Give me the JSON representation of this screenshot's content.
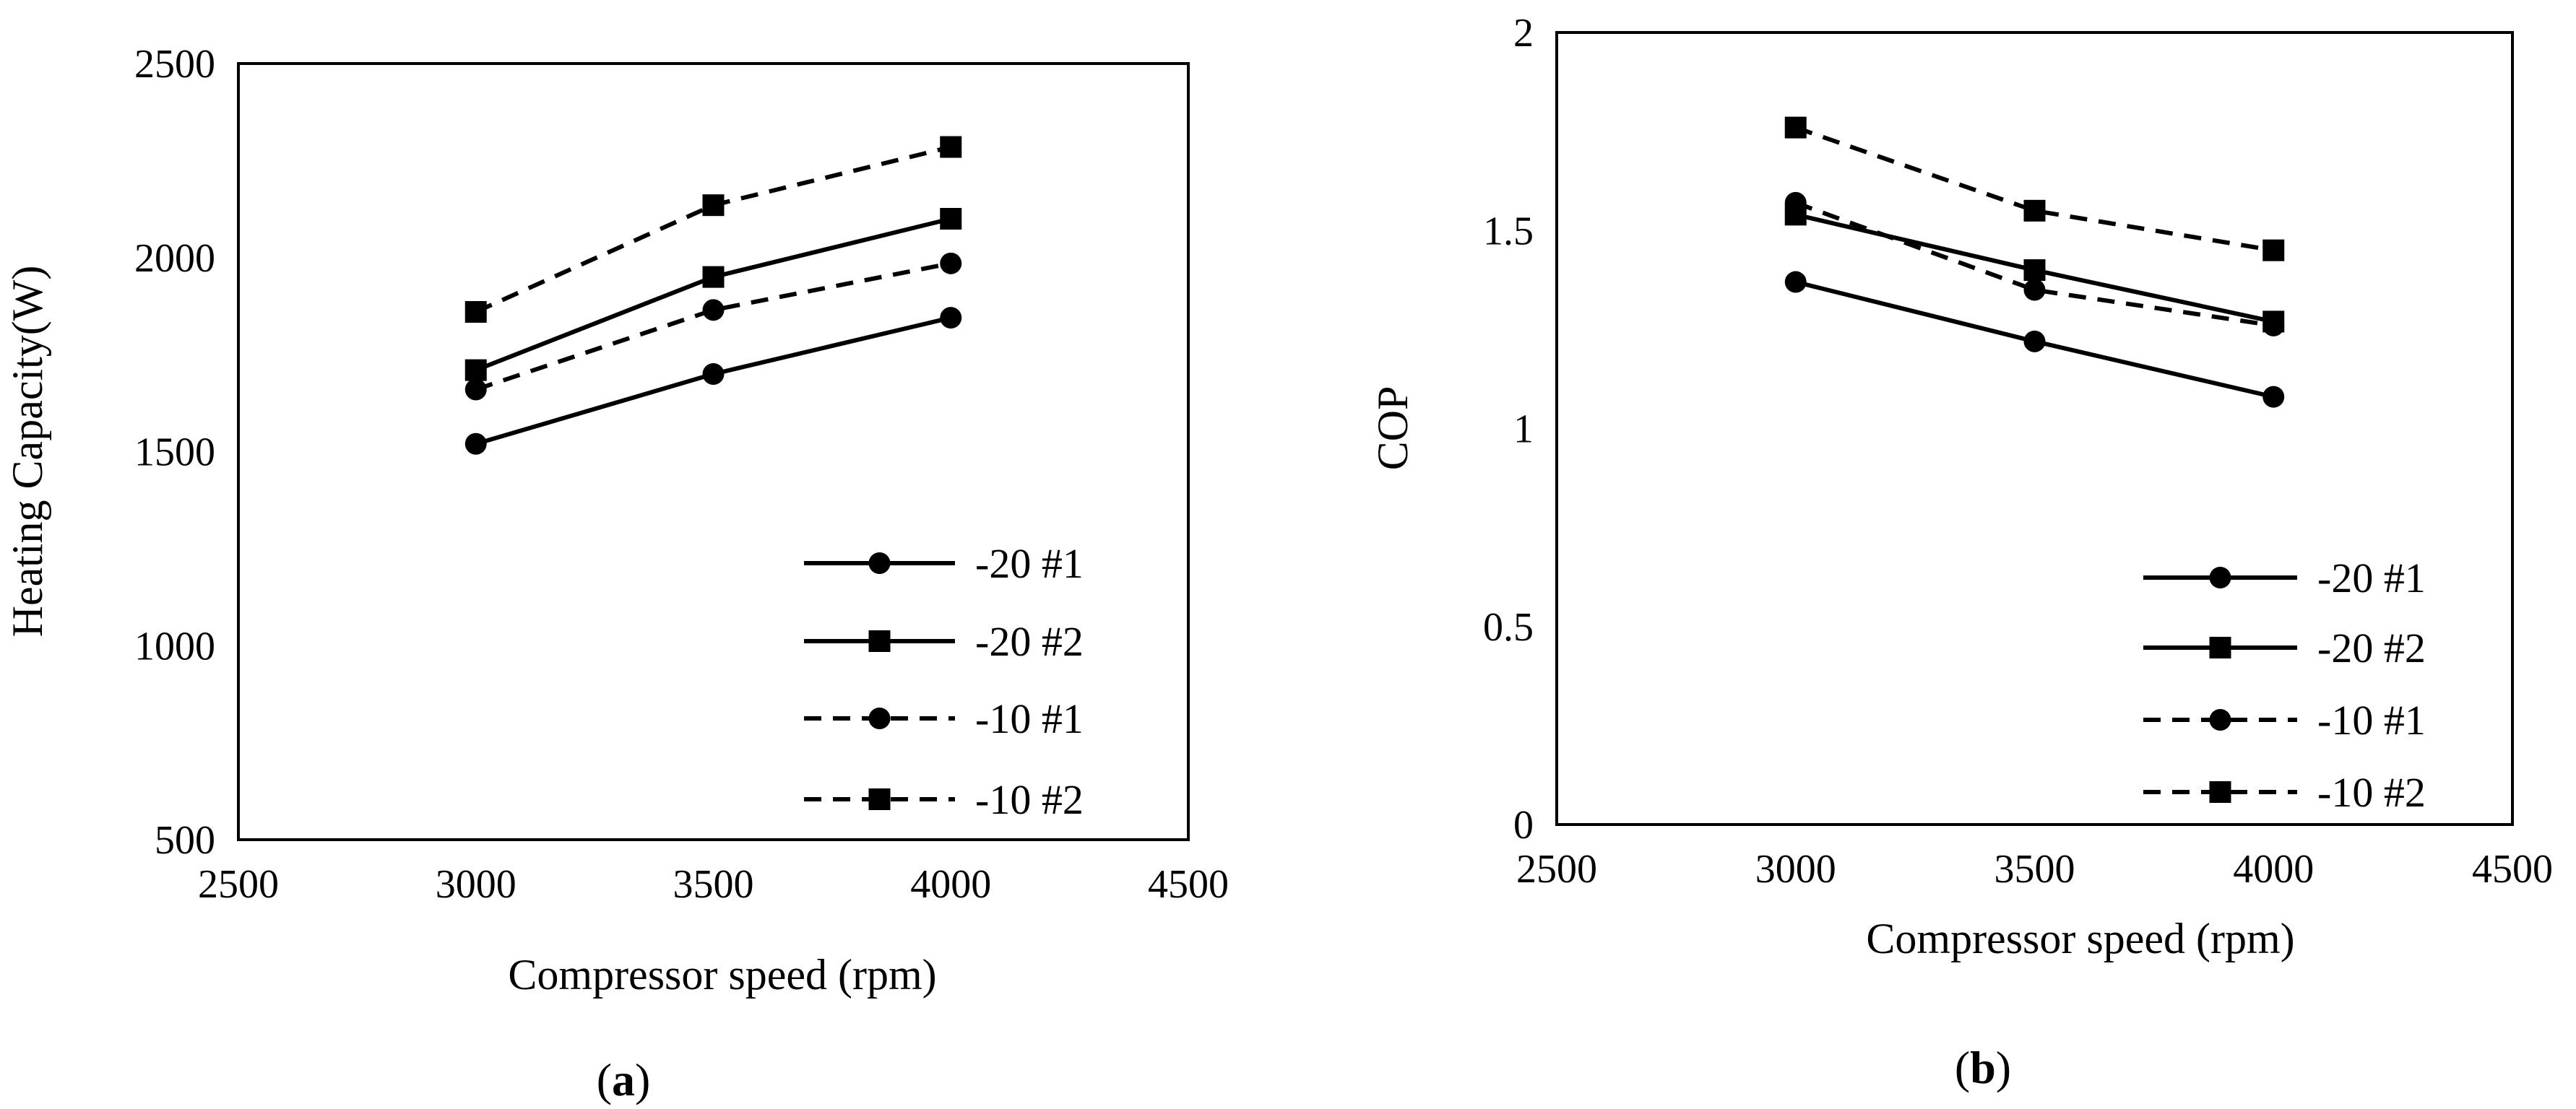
{
  "chart_data": [
    {
      "type": "line",
      "panel": "a",
      "caption": {
        "open": "(",
        "letter": "a",
        "close": ")"
      },
      "xlabel": "Compressor speed (rpm)",
      "ylabel": "Heating Capacity(W)",
      "xlim": [
        2500,
        4500
      ],
      "ylim": [
        500,
        2500
      ],
      "xticks": [
        2500,
        3000,
        3500,
        4000,
        4500
      ],
      "yticks": [
        500,
        1000,
        1500,
        2000,
        2500
      ],
      "grid": false,
      "legend_position": "bottom-right",
      "x": [
        3000,
        3500,
        4000
      ],
      "series": [
        {
          "name": "-20 #1",
          "values": [
            1520,
            1700,
            1845
          ],
          "line": "solid",
          "marker": "circle"
        },
        {
          "name": "-20 #2",
          "values": [
            1710,
            1950,
            2100
          ],
          "line": "solid",
          "marker": "square"
        },
        {
          "name": "-10 #1",
          "values": [
            1660,
            1865,
            1985
          ],
          "line": "dashed",
          "marker": "circle"
        },
        {
          "name": "-10 #2",
          "values": [
            1860,
            2135,
            2285
          ],
          "line": "dashed",
          "marker": "square"
        }
      ]
    },
    {
      "type": "line",
      "panel": "b",
      "caption": {
        "open": "(",
        "letter": "b",
        "close": ")"
      },
      "xlabel": "Compressor speed (rpm)",
      "ylabel": "COP",
      "xlim": [
        2500,
        4500
      ],
      "ylim": [
        0,
        2
      ],
      "xticks": [
        2500,
        3000,
        3500,
        4000,
        4500
      ],
      "yticks": [
        0,
        0.5,
        1,
        1.5,
        2
      ],
      "grid": false,
      "legend_position": "bottom-right",
      "x": [
        3000,
        3500,
        4000
      ],
      "series": [
        {
          "name": "-20 #1",
          "values": [
            1.37,
            1.22,
            1.08
          ],
          "line": "solid",
          "marker": "circle"
        },
        {
          "name": "-20 #2",
          "values": [
            1.54,
            1.4,
            1.27
          ],
          "line": "solid",
          "marker": "square"
        },
        {
          "name": "-10 #1",
          "values": [
            1.57,
            1.35,
            1.26
          ],
          "line": "dashed",
          "marker": "circle"
        },
        {
          "name": "-10 #2",
          "values": [
            1.76,
            1.55,
            1.45
          ],
          "line": "dashed",
          "marker": "square"
        }
      ]
    }
  ]
}
